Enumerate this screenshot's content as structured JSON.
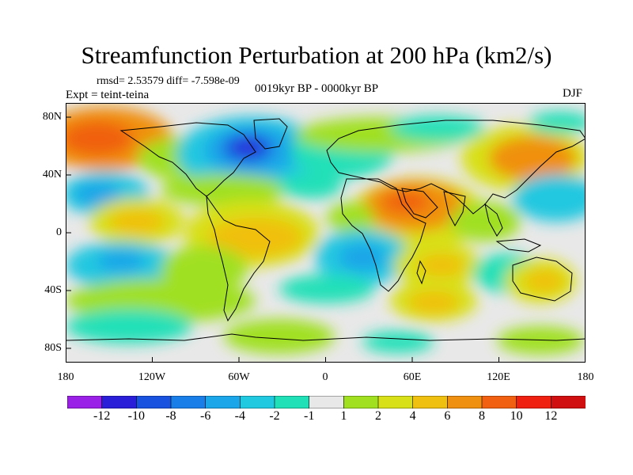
{
  "title": "Streamfunction Perturbation at 200 hPa (km2/s)",
  "stats_line": "rmsd= 2.53579  diff= -7.598e-09",
  "experiment": "Expt = teint-teina",
  "period": "0019kyr BP - 0000kyr BP",
  "season": "DJF",
  "lat_labels": [
    "80N",
    "40N",
    "0",
    "40S",
    "80S"
  ],
  "lon_labels": [
    "180",
    "120W",
    "60W",
    "0",
    "60E",
    "120E",
    "180"
  ],
  "colorbar": {
    "labels": [
      "-12",
      "-10",
      "-8",
      "-6",
      "-4",
      "-2",
      "-1",
      "1",
      "2",
      "4",
      "6",
      "8",
      "10",
      "12"
    ],
    "colors": [
      "#9a20e8",
      "#2a1ed8",
      "#1a52e0",
      "#1a7ee8",
      "#1aa6e8",
      "#20c8e0",
      "#20e0b8",
      "#e8e8e8",
      "#a0e020",
      "#d8e018",
      "#f0c010",
      "#f09010",
      "#f06010",
      "#f02010",
      "#d01010"
    ]
  }
}
